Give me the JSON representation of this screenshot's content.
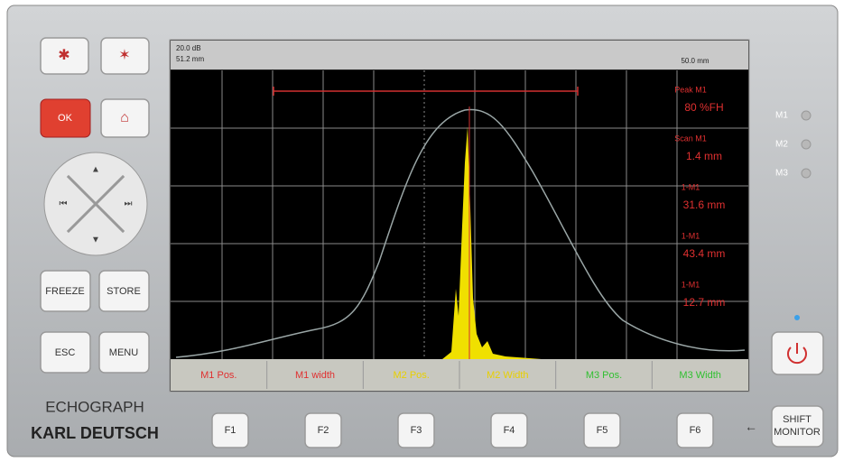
{
  "header": {
    "gain": "20.0 dB",
    "range": "51.2 mm",
    "right": "50.0 mm"
  },
  "readouts": [
    {
      "label": "Peak M1",
      "value": "80 %FH"
    },
    {
      "label": "Scan M1",
      "value": "1.4 mm"
    },
    {
      "label": "1-M1",
      "value": "31.6 mm"
    },
    {
      "label": "1-M1",
      "value": "43.4 mm"
    },
    {
      "label": "1-M1",
      "value": "12.7 mm"
    }
  ],
  "softkeys": [
    "M1 Pos.",
    "M1 width",
    "M2 Pos.",
    "M2 Width",
    "M3 Pos.",
    "M3 Width"
  ],
  "markers": [
    "M1",
    "M2",
    "M3"
  ],
  "buttons": {
    "ok": "OK",
    "freeze": "FREEZE",
    "store": "STORE",
    "esc": "ESC",
    "menu": "MENU",
    "shift": "SHIFT",
    "monitor": "MONITOR"
  },
  "fkeys": [
    "F1",
    "F2",
    "F3",
    "F4",
    "F5",
    "F6"
  ],
  "brand": {
    "product": "ECHOGRAPH",
    "company": "KARL DEUTSCH"
  }
}
